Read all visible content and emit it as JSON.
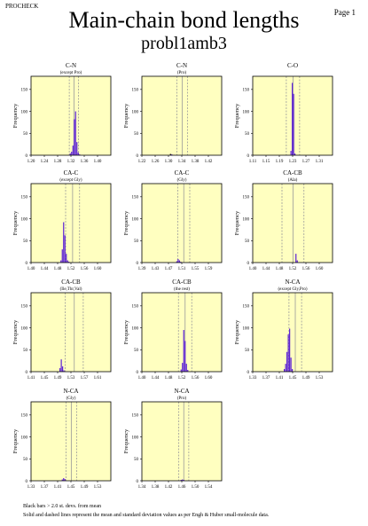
{
  "header": {
    "brand": "PROCHECK",
    "page_label": "Page 1",
    "title": "Main-chain bond lengths",
    "subtitle": "probl1amb3"
  },
  "footer": {
    "line1": "Black bars > 2.0 st. devs. from mean",
    "line2": "Solid and dashed lines represent the mean and standard deviation values as per Engh & Huber small-molecule data."
  },
  "colors": {
    "panel_bg": "#ffffc0",
    "bar": "#5b1fd6",
    "bar_outlier": "#000000",
    "line": "#9a9a9a"
  },
  "chart_data": [
    {
      "type": "bar",
      "title": "C-N",
      "subtitle": "(except Pro)",
      "ylabel": "Frequency",
      "xlim": [
        1.2,
        1.44
      ],
      "xticks": [
        "1.20",
        "1.24",
        "1.28",
        "1.32",
        "1.36",
        "1.40"
      ],
      "ylim": [
        0,
        180
      ],
      "yticks": [
        50,
        100,
        150
      ],
      "mean": 1.329,
      "sd": 0.014,
      "bars": [
        {
          "x": 1.318,
          "y": 4
        },
        {
          "x": 1.322,
          "y": 8
        },
        {
          "x": 1.326,
          "y": 22
        },
        {
          "x": 1.33,
          "y": 82
        },
        {
          "x": 1.334,
          "y": 100
        },
        {
          "x": 1.338,
          "y": 30
        },
        {
          "x": 1.342,
          "y": 6
        },
        {
          "x": 1.346,
          "y": 2
        }
      ]
    },
    {
      "type": "bar",
      "title": "C-N",
      "subtitle": "(Pro)",
      "ylabel": "Frequency",
      "xlim": [
        1.22,
        1.46
      ],
      "xticks": [
        "1.22",
        "1.26",
        "1.30",
        "1.34",
        "1.38",
        "1.42"
      ],
      "ylim": [
        0,
        180
      ],
      "yticks": [
        50,
        100,
        150
      ],
      "mean": 1.341,
      "sd": 0.016,
      "bars": [
        {
          "x": 1.306,
          "y": 3
        },
        {
          "x": 1.31,
          "y": 2
        }
      ]
    },
    {
      "type": "bar",
      "title": "C-O",
      "subtitle": "",
      "ylabel": "Frequency",
      "xlim": [
        1.11,
        1.35
      ],
      "xticks": [
        "1.11",
        "1.15",
        "1.19",
        "1.23",
        "1.27",
        "1.31"
      ],
      "ylim": [
        0,
        180
      ],
      "yticks": [
        50,
        100,
        150
      ],
      "mean": 1.231,
      "sd": 0.02,
      "bars": [
        {
          "x": 1.225,
          "y": 10
        },
        {
          "x": 1.229,
          "y": 165
        },
        {
          "x": 1.233,
          "y": 140
        },
        {
          "x": 1.237,
          "y": 4
        }
      ]
    },
    {
      "type": "bar",
      "title": "CA-C",
      "subtitle": "(except Gly)",
      "ylabel": "Frequency",
      "xlim": [
        1.4,
        1.64
      ],
      "xticks": [
        "1.40",
        "1.44",
        "1.48",
        "1.52",
        "1.56",
        "1.60"
      ],
      "ylim": [
        0,
        180
      ],
      "yticks": [
        50,
        100,
        150
      ],
      "mean": 1.525,
      "sd": 0.021,
      "bars": [
        {
          "x": 1.49,
          "y": 5
        },
        {
          "x": 1.494,
          "y": 30
        },
        {
          "x": 1.498,
          "y": 92
        },
        {
          "x": 1.502,
          "y": 62
        },
        {
          "x": 1.506,
          "y": 20
        },
        {
          "x": 1.51,
          "y": 5
        },
        {
          "x": 1.514,
          "y": 2
        }
      ]
    },
    {
      "type": "bar",
      "title": "CA-C",
      "subtitle": "(Gly)",
      "ylabel": "Frequency",
      "xlim": [
        1.39,
        1.63
      ],
      "xticks": [
        "1.39",
        "1.43",
        "1.47",
        "1.51",
        "1.55",
        "1.59"
      ],
      "ylim": [
        0,
        180
      ],
      "yticks": [
        50,
        100,
        150
      ],
      "mean": 1.516,
      "sd": 0.018,
      "bars": [
        {
          "x": 1.495,
          "y": 3
        },
        {
          "x": 1.499,
          "y": 8
        },
        {
          "x": 1.503,
          "y": 5
        },
        {
          "x": 1.507,
          "y": 2
        }
      ]
    },
    {
      "type": "bar",
      "title": "CA-CB",
      "subtitle": "(Ala)",
      "ylabel": "Frequency",
      "xlim": [
        1.4,
        1.64
      ],
      "xticks": [
        "1.40",
        "1.44",
        "1.48",
        "1.52",
        "1.56",
        "1.60"
      ],
      "ylim": [
        0,
        180
      ],
      "yticks": [
        50,
        100,
        150
      ],
      "mean": 1.521,
      "sd": 0.033,
      "bars": [
        {
          "x": 1.53,
          "y": 20
        },
        {
          "x": 1.534,
          "y": 5
        }
      ]
    },
    {
      "type": "bar",
      "title": "CA-CB",
      "subtitle": "(Ile,Thr,Val)",
      "ylabel": "Frequency",
      "xlim": [
        1.41,
        1.65
      ],
      "xticks": [
        "1.41",
        "1.45",
        "1.49",
        "1.53",
        "1.57",
        "1.61"
      ],
      "ylim": [
        0,
        180
      ],
      "yticks": [
        50,
        100,
        150
      ],
      "mean": 1.54,
      "sd": 0.027,
      "bars": [
        {
          "x": 1.497,
          "y": 8
        },
        {
          "x": 1.501,
          "y": 28
        },
        {
          "x": 1.505,
          "y": 12
        },
        {
          "x": 1.509,
          "y": 3
        }
      ]
    },
    {
      "type": "bar",
      "title": "CA-CB",
      "subtitle": "(the rest)",
      "ylabel": "Frequency",
      "xlim": [
        1.4,
        1.64
      ],
      "xticks": [
        "1.40",
        "1.44",
        "1.48",
        "1.52",
        "1.56",
        "1.60"
      ],
      "ylim": [
        0,
        180
      ],
      "yticks": [
        50,
        100,
        150
      ],
      "mean": 1.53,
      "sd": 0.02,
      "bars": [
        {
          "x": 1.518,
          "y": 5
        },
        {
          "x": 1.522,
          "y": 20
        },
        {
          "x": 1.526,
          "y": 95
        },
        {
          "x": 1.53,
          "y": 70
        },
        {
          "x": 1.534,
          "y": 18
        },
        {
          "x": 1.538,
          "y": 4
        }
      ]
    },
    {
      "type": "bar",
      "title": "N-CA",
      "subtitle": "(except Gly,Pro)",
      "ylabel": "Frequency",
      "xlim": [
        1.33,
        1.57
      ],
      "xticks": [
        "1.33",
        "1.37",
        "1.41",
        "1.45",
        "1.49",
        "1.53"
      ],
      "ylim": [
        0,
        180
      ],
      "yticks": [
        50,
        100,
        150
      ],
      "mean": 1.458,
      "sd": 0.019,
      "bars": [
        {
          "x": 1.425,
          "y": 6
        },
        {
          "x": 1.429,
          "y": 18
        },
        {
          "x": 1.433,
          "y": 45
        },
        {
          "x": 1.437,
          "y": 85
        },
        {
          "x": 1.441,
          "y": 98
        },
        {
          "x": 1.445,
          "y": 32
        },
        {
          "x": 1.449,
          "y": 6
        }
      ]
    },
    {
      "type": "bar",
      "title": "N-CA",
      "subtitle": "(Gly)",
      "ylabel": "Frequency",
      "xlim": [
        1.33,
        1.57
      ],
      "xticks": [
        "1.33",
        "1.37",
        "1.41",
        "1.45",
        "1.49",
        "1.53"
      ],
      "ylim": [
        0,
        180
      ],
      "yticks": [
        50,
        100,
        150
      ],
      "mean": 1.451,
      "sd": 0.016,
      "bars": [
        {
          "x": 1.424,
          "y": 3
        },
        {
          "x": 1.428,
          "y": 6
        },
        {
          "x": 1.432,
          "y": 4
        }
      ]
    },
    {
      "type": "bar",
      "title": "N-CA",
      "subtitle": "(Pro)",
      "ylabel": "Frequency",
      "xlim": [
        1.34,
        1.58
      ],
      "xticks": [
        "1.34",
        "1.38",
        "1.42",
        "1.46",
        "1.50",
        "1.54"
      ],
      "ylim": [
        0,
        180
      ],
      "yticks": [
        50,
        100,
        150
      ],
      "mean": 1.466,
      "sd": 0.015,
      "bars": [
        {
          "x": 1.458,
          "y": 2
        },
        {
          "x": 1.462,
          "y": 3
        },
        {
          "x": 1.466,
          "y": 2
        }
      ]
    }
  ]
}
